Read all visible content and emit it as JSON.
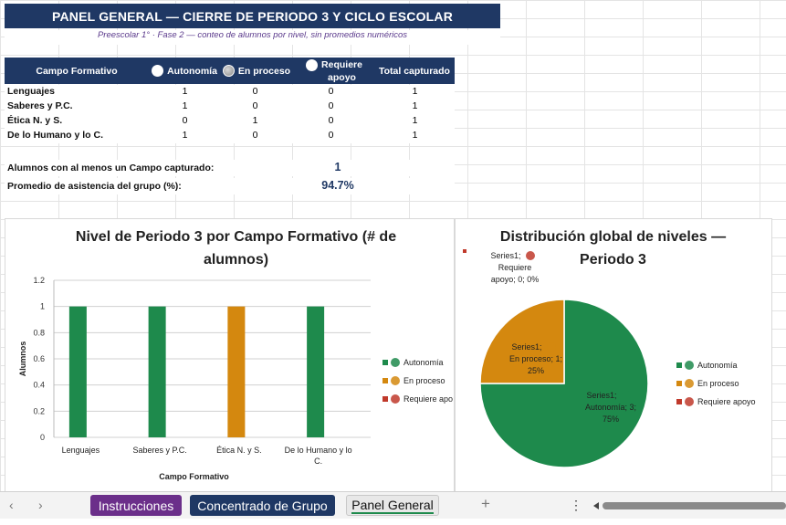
{
  "title": "PANEL GENERAL — CIERRE DE PERIODO 3 Y CICLO ESCOLAR",
  "subtitle": "Preescolar 1° · Fase 2 — conteo de alumnos por nivel, sin promedios numéricos",
  "table": {
    "headers": {
      "campo": "Campo Formativo",
      "autonomia": "Autonomía",
      "en_proceso": "En proceso",
      "requiere_apoyo_1": "Requiere",
      "requiere_apoyo_2": "apoyo",
      "total": "Total capturado"
    },
    "rows": [
      {
        "label": "Lenguajes",
        "autonomia": "1",
        "en_proceso": "0",
        "requiere": "0",
        "total": "1"
      },
      {
        "label": "Saberes y P.C.",
        "autonomia": "1",
        "en_proceso": "0",
        "requiere": "0",
        "total": "1"
      },
      {
        "label": "Ética N. y S.",
        "autonomia": "0",
        "en_proceso": "1",
        "requiere": "0",
        "total": "1"
      },
      {
        "label": "De lo Humano y lo C.",
        "autonomia": "1",
        "en_proceso": "0",
        "requiere": "0",
        "total": "1"
      }
    ]
  },
  "stats": {
    "alumnos_label": "Alumnos con al menos un Campo capturado:",
    "alumnos_value": "1",
    "asistencia_label": "Promedio de asistencia del grupo (%):",
    "asistencia_value": "94.7%"
  },
  "colors": {
    "autonomia": "#1e8a4c",
    "en_proceso": "#d4880f",
    "requiere_apoyo": "#c0392b",
    "header": "#1f3864"
  },
  "chart_data": [
    {
      "type": "bar",
      "title": "Nivel de Periodo 3 por Campo Formativo (# de alumnos)",
      "xlabel": "Campo Formativo",
      "ylabel": "Alumnos",
      "categories": [
        "Lenguajes",
        "Saberes y P.C.",
        "Ética N. y S.",
        "De lo Humano y lo C."
      ],
      "series": [
        {
          "name": "Autonomía",
          "values": [
            1,
            1,
            0,
            1
          ]
        },
        {
          "name": "En proceso",
          "values": [
            0,
            0,
            1,
            0
          ]
        },
        {
          "name": "Requiere apoyo",
          "values": [
            0,
            0,
            0,
            0
          ]
        }
      ],
      "yticks": [
        "0",
        "0.2",
        "0.4",
        "0.6",
        "0.8",
        "1",
        "1.2"
      ],
      "ylim": [
        0,
        1.2
      ],
      "legend": [
        "Autonomía",
        "En proceso",
        "Requiere apo"
      ],
      "legend_position": "right",
      "grid": true
    },
    {
      "type": "pie",
      "title": "Distribución global de niveles — Periodo 3",
      "labels": [
        "Autonomía",
        "En proceso",
        "Requiere apoyo"
      ],
      "values": [
        3,
        1,
        0
      ],
      "data_labels": [
        {
          "line1": "Series1;",
          "line2": "Autonomía; 3;",
          "line3": "75%"
        },
        {
          "line1": "Series1;",
          "line2": "En proceso; 1;",
          "line3": "25%"
        },
        {
          "line1": "Series1;",
          "line2": "Requiere",
          "line3": "apoyo; 0; 0%"
        }
      ],
      "legend": [
        "Autonomía",
        "En proceso",
        "Requiere apoyo"
      ],
      "legend_position": "right"
    }
  ],
  "tabs": {
    "instrucciones": "Instrucciones",
    "concentrado": "Concentrado de Grupo",
    "panel": "Panel General",
    "add": "+",
    "more": "⋮",
    "prev": "‹",
    "next": "›"
  }
}
